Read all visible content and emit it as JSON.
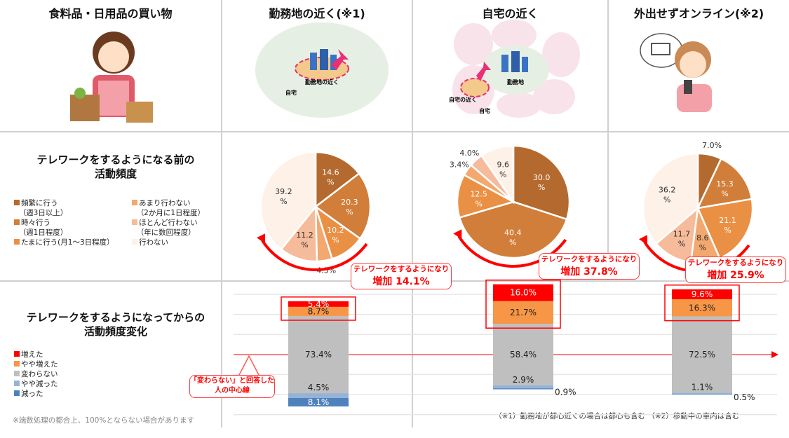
{
  "headers": [
    "食料品・日用品の買い物",
    "勤務地の近く(※1)",
    "自宅の近く",
    "外出せずオンライン(※2)"
  ],
  "illustration_labels": {
    "work_near": "勤務地の近く",
    "home": "自宅",
    "workplace": "勤務地",
    "home_near": "自宅の近く"
  },
  "pie_section": {
    "title_line1": "テレワークをするようになる前の",
    "title_line2": "活動頻度",
    "legend": [
      {
        "label": "頻繁に行う",
        "sub": "（週3日以上）",
        "color": "#B46A2E"
      },
      {
        "label": "時々行う",
        "sub": "（週1日程度）",
        "color": "#D07E3A"
      },
      {
        "label": "たまに行う(月1～3日程度）",
        "sub": "",
        "color": "#EA9045"
      },
      {
        "label": "あまり行わない",
        "sub": "（2か月に1日程度）",
        "color": "#F2A86E"
      },
      {
        "label": "ほとんど行わない",
        "sub": "（年に数回程度）",
        "color": "#F5BB9A"
      },
      {
        "label": "行わない",
        "sub": "",
        "color": "#FDF1E8"
      }
    ]
  },
  "bar_section": {
    "title_line1": "テレワークをするようになってからの",
    "title_line2": "活動頻度変化",
    "legend": [
      {
        "label": "増えた",
        "color": "#FF0000"
      },
      {
        "label": "やや増えた",
        "color": "#F79646"
      },
      {
        "label": "変わらない",
        "color": "#BFBFBF"
      },
      {
        "label": "やや減った",
        "color": "#95B3D7"
      },
      {
        "label": "減った",
        "color": "#4F81BD"
      }
    ],
    "center_line_label": "「変わらない」と回答した人の中心線"
  },
  "callouts": [
    {
      "line1": "テレワークをするようになり",
      "line2": "増加 14.1%"
    },
    {
      "line1": "テレワークをするようになり",
      "line2": "増加 37.8%"
    },
    {
      "line1": "テレワークをするようになり",
      "line2": "増加 25.9%"
    }
  ],
  "footnotes": {
    "rounding": "※端数処理の都合上、100%とならない場合があります",
    "notes": "（※1）勤務地が都心近くの場合は都心も含む （※2）移動中の車内は含む"
  },
  "chart_data": [
    {
      "type": "pie",
      "title": "勤務地の近く(※1)",
      "categories": [
        "頻繁に行う",
        "時々行う",
        "たまに行う",
        "あまり行わない",
        "ほとんど行わない",
        "行わない"
      ],
      "values": [
        14.6,
        20.3,
        10.2,
        4.5,
        11.2,
        39.2
      ]
    },
    {
      "type": "pie",
      "title": "自宅の近く",
      "categories": [
        "頻繁に行う",
        "時々行う",
        "たまに行う",
        "あまり行わない",
        "ほとんど行わない",
        "行わない"
      ],
      "values": [
        30.0,
        40.4,
        12.5,
        3.4,
        4.0,
        9.6
      ]
    },
    {
      "type": "pie",
      "title": "外出せずオンライン(※2)",
      "categories": [
        "頻繁に行う",
        "時々行う",
        "たまに行う",
        "あまり行わない",
        "ほとんど行わない",
        "行わない"
      ],
      "values": [
        7.0,
        15.3,
        21.1,
        8.6,
        11.7,
        36.2
      ]
    },
    {
      "type": "bar",
      "stacked": true,
      "categories": [
        "勤務地の近く(※1)",
        "自宅の近く",
        "外出せずオンライン(※2)"
      ],
      "series": [
        {
          "name": "増えた",
          "values": [
            5.4,
            16.0,
            9.6
          ]
        },
        {
          "name": "やや増えた",
          "values": [
            8.7,
            21.7,
            16.3
          ]
        },
        {
          "name": "変わらない",
          "values": [
            73.4,
            58.4,
            72.5
          ]
        },
        {
          "name": "やや減った",
          "values": [
            4.5,
            2.9,
            1.1
          ]
        },
        {
          "name": "減った",
          "values": [
            8.1,
            0.9,
            0.5
          ]
        }
      ],
      "grid": true,
      "centered_on": "変わらない"
    }
  ]
}
